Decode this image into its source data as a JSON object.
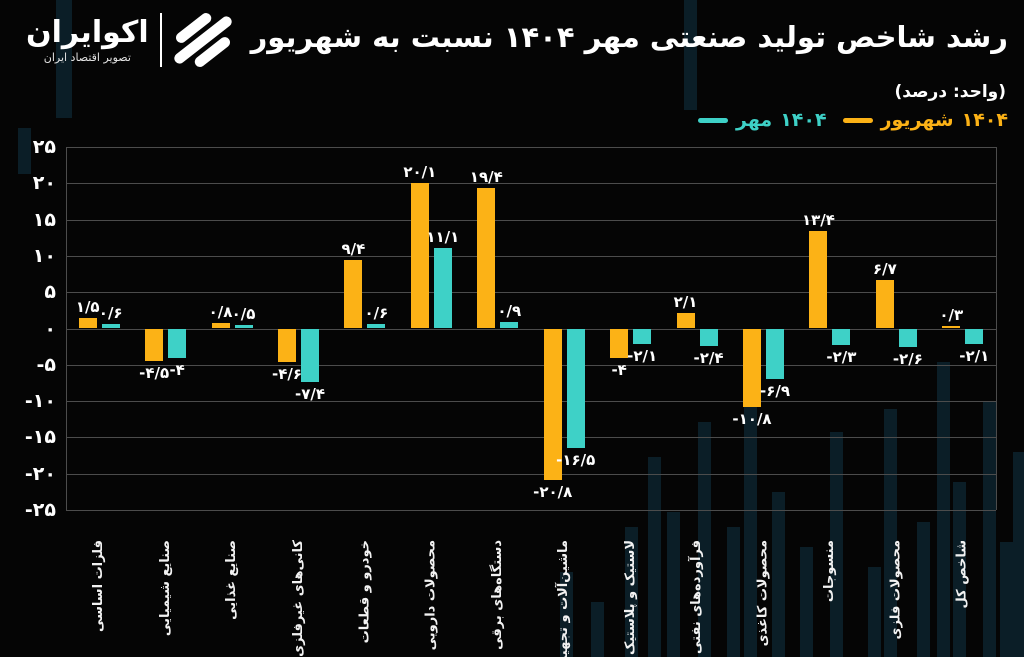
{
  "colors": {
    "background": "#050505",
    "yellow": "#fcb216",
    "cyan": "#3ed1c7",
    "grid": "#4c4c4c",
    "text": "#ffffff",
    "decor": "#11384a"
  },
  "header": {
    "brand": {
      "name": "اکوایران",
      "tagline": "تصویر اقتصاد ایران"
    },
    "title": "رشد شاخص تولید صنعتی مهر ۱۴۰۴ نسبت به شهریور",
    "subtitle": "(واحد: درصد)"
  },
  "legend": [
    {
      "id": "mehr-1404",
      "month": "مهر",
      "year": "۱۴۰۴",
      "color": "#3ed1c7"
    },
    {
      "id": "shahrivar-1404",
      "month": "شهریور",
      "year": "۱۴۰۴",
      "color": "#fcb216"
    }
  ],
  "chart_data": {
    "type": "bar",
    "title": "رشد شاخص تولید صنعتی مهر ۱۴۰۴ نسبت به شهریور",
    "unit_label": "(واحد: درصد)",
    "categories": [
      "فلزات اساسی",
      "صنایع شیمیایی",
      "صنایع غذایی",
      "کانی‌های غیرفلزی",
      "خودرو و قطعات",
      "محصولات دارویی",
      "دستگاه‌های برقی",
      "ماشین‌آلات و تجهیزات",
      "لاستیک و پلاستیک",
      "فرآورده‌های نفتی",
      "محصولات کاغذی",
      "منسوجات",
      "محصولات فلزی",
      "شاخص کل"
    ],
    "series": [
      {
        "id": "shahrivar-1404",
        "name": "شهریور ۱۴۰۴",
        "color": "#fcb216",
        "values": [
          1.5,
          -4.5,
          0.8,
          -4.6,
          9.4,
          20.1,
          19.4,
          -20.8,
          -4,
          2.1,
          -10.8,
          13.4,
          6.7,
          0.3
        ],
        "labels": [
          "۱/۵",
          "-۴/۵",
          "۰/۸",
          "-۴/۶",
          "۹/۴",
          "۲۰/۱",
          "۱۹/۴",
          "-۲۰/۸",
          "-۴",
          "۲/۱",
          "-۱۰/۸",
          "۱۳/۴",
          "۶/۷",
          "۰/۳"
        ]
      },
      {
        "id": "mehr-1404",
        "name": "مهر ۱۴۰۴",
        "color": "#3ed1c7",
        "values": [
          0.6,
          -4,
          0.5,
          -7.4,
          0.6,
          11.1,
          0.9,
          -16.5,
          -2.1,
          -2.4,
          -6.9,
          -2.3,
          -2.6,
          -2.1
        ],
        "labels": [
          "۰/۶",
          "-۴",
          "۰/۵",
          "-۷/۴",
          "۰/۶",
          "۱۱/۱",
          "۰/۹",
          "-۱۶/۵",
          "-۲/۱",
          "-۲/۴",
          "-۶/۹",
          "-۲/۳",
          "-۲/۶",
          "-۲/۱"
        ]
      }
    ],
    "y_ticks": [
      "۲۵",
      "۲۰",
      "۱۵",
      "۱۰",
      "۵",
      "۰",
      "-۵",
      "-۱۰",
      "-۱۵",
      "-۲۰",
      "-۲۵"
    ],
    "ylim": [
      -25,
      25
    ],
    "grid": true,
    "legend_position": "top-right"
  }
}
